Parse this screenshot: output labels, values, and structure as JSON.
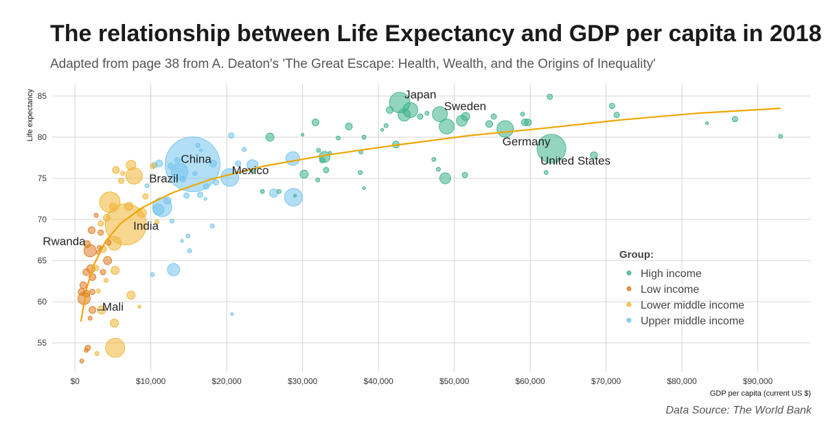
{
  "chart_data": {
    "type": "scatter",
    "title": "The relationship between Life Expectancy and GDP per capita in 2018",
    "subtitle": "Adapted from page 38 from A. Deaton's 'The Great Escape: Health, Wealth, and the Origins of Inequality'",
    "caption": "Data Source: The World Bank",
    "xlabel": "GDP per capita (current US $)",
    "ylabel": "Life expectancy",
    "xlim": [
      -3000,
      97000
    ],
    "ylim": [
      51.5,
      86.5
    ],
    "x_ticks": [
      0,
      10000,
      20000,
      30000,
      40000,
      50000,
      60000,
      70000,
      80000,
      90000
    ],
    "x_tick_labels": [
      "$0",
      "$10,000",
      "$20,000",
      "$30,000",
      "$40,000",
      "$50,000",
      "$60,000",
      "$70,000",
      "$80,000",
      "$90,000"
    ],
    "y_ticks": [
      55,
      60,
      65,
      70,
      75,
      80,
      85
    ],
    "y_tick_labels": [
      "55",
      "60",
      "65",
      "70",
      "75",
      "80",
      "85"
    ],
    "grid": true,
    "legend": {
      "title": "Group:",
      "placement": "right",
      "entries": [
        {
          "key": "high",
          "label": "High income",
          "color": "#3db28a"
        },
        {
          "key": "low",
          "label": "Low income",
          "color": "#e07b22"
        },
        {
          "key": "lower_middle",
          "label": "Lower middle income",
          "color": "#f0b434"
        },
        {
          "key": "upper_middle",
          "label": "Upper middle income",
          "color": "#72c3ef"
        }
      ]
    },
    "trend_color": "#f0a500",
    "trend_line": [
      [
        800,
        57.6
      ],
      [
        1500,
        61.5
      ],
      [
        2500,
        64.5
      ],
      [
        4000,
        67.3
      ],
      [
        6000,
        69.5
      ],
      [
        9000,
        71.5
      ],
      [
        13000,
        73.3
      ],
      [
        18000,
        74.9
      ],
      [
        25000,
        76.5
      ],
      [
        33000,
        77.8
      ],
      [
        42000,
        79.0
      ],
      [
        52000,
        80.2
      ],
      [
        62000,
        81.1
      ],
      [
        72000,
        82.1
      ],
      [
        82000,
        82.9
      ],
      [
        93000,
        83.5
      ]
    ],
    "points": [
      {
        "x": 42800,
        "y": 84.2,
        "s": 15,
        "g": "high"
      },
      {
        "x": 44200,
        "y": 83.3,
        "s": 11,
        "g": "high"
      },
      {
        "x": 41500,
        "y": 83.3,
        "s": 5,
        "g": "high"
      },
      {
        "x": 43400,
        "y": 82.7,
        "s": 9,
        "g": "high"
      },
      {
        "x": 45500,
        "y": 82.5,
        "s": 4,
        "g": "high"
      },
      {
        "x": 46400,
        "y": 82.9,
        "s": 3,
        "g": "high"
      },
      {
        "x": 48100,
        "y": 82.8,
        "s": 11,
        "g": "high"
      },
      {
        "x": 51000,
        "y": 82.0,
        "s": 8,
        "g": "high"
      },
      {
        "x": 51500,
        "y": 82.5,
        "s": 6,
        "g": "high"
      },
      {
        "x": 49000,
        "y": 81.3,
        "s": 11,
        "g": "high"
      },
      {
        "x": 54600,
        "y": 81.6,
        "s": 5,
        "g": "high"
      },
      {
        "x": 55200,
        "y": 82.5,
        "s": 4,
        "g": "high"
      },
      {
        "x": 56700,
        "y": 81.0,
        "s": 12,
        "g": "high"
      },
      {
        "x": 59300,
        "y": 81.8,
        "s": 5,
        "g": "high"
      },
      {
        "x": 59700,
        "y": 81.8,
        "s": 5,
        "g": "high"
      },
      {
        "x": 59000,
        "y": 82.8,
        "s": 3,
        "g": "high"
      },
      {
        "x": 62600,
        "y": 84.9,
        "s": 4,
        "g": "high"
      },
      {
        "x": 70800,
        "y": 83.8,
        "s": 4,
        "g": "high"
      },
      {
        "x": 71400,
        "y": 82.7,
        "s": 4,
        "g": "high"
      },
      {
        "x": 87000,
        "y": 82.2,
        "s": 4,
        "g": "high"
      },
      {
        "x": 83300,
        "y": 81.7,
        "s": 2,
        "g": "high"
      },
      {
        "x": 93000,
        "y": 80.1,
        "s": 3,
        "g": "high"
      },
      {
        "x": 68400,
        "y": 77.8,
        "s": 5,
        "g": "high"
      },
      {
        "x": 62800,
        "y": 78.6,
        "s": 21,
        "g": "high"
      },
      {
        "x": 62100,
        "y": 75.7,
        "s": 3,
        "g": "high"
      },
      {
        "x": 48800,
        "y": 75.0,
        "s": 8,
        "g": "high"
      },
      {
        "x": 51400,
        "y": 75.4,
        "s": 4,
        "g": "high"
      },
      {
        "x": 47300,
        "y": 77.3,
        "s": 3,
        "g": "high"
      },
      {
        "x": 47900,
        "y": 76.1,
        "s": 3,
        "g": "high"
      },
      {
        "x": 42300,
        "y": 79.1,
        "s": 5,
        "g": "high"
      },
      {
        "x": 41000,
        "y": 81.4,
        "s": 3,
        "g": "high"
      },
      {
        "x": 40500,
        "y": 80.9,
        "s": 2,
        "g": "high"
      },
      {
        "x": 38100,
        "y": 80.0,
        "s": 3,
        "g": "high"
      },
      {
        "x": 36100,
        "y": 81.3,
        "s": 5,
        "g": "high"
      },
      {
        "x": 34700,
        "y": 79.9,
        "s": 3,
        "g": "high"
      },
      {
        "x": 31700,
        "y": 81.8,
        "s": 5,
        "g": "high"
      },
      {
        "x": 30000,
        "y": 80.3,
        "s": 2,
        "g": "high"
      },
      {
        "x": 25700,
        "y": 80.0,
        "s": 6,
        "g": "high"
      },
      {
        "x": 32900,
        "y": 77.6,
        "s": 8,
        "g": "high"
      },
      {
        "x": 32100,
        "y": 78.4,
        "s": 3,
        "g": "high"
      },
      {
        "x": 33600,
        "y": 78.1,
        "s": 2,
        "g": "high"
      },
      {
        "x": 37700,
        "y": 78.2,
        "s": 3,
        "g": "high"
      },
      {
        "x": 32600,
        "y": 77.2,
        "s": 4,
        "g": "high"
      },
      {
        "x": 33100,
        "y": 76.0,
        "s": 4,
        "g": "high"
      },
      {
        "x": 30200,
        "y": 75.5,
        "s": 6,
        "g": "high"
      },
      {
        "x": 32000,
        "y": 74.8,
        "s": 3,
        "g": "high"
      },
      {
        "x": 37600,
        "y": 75.7,
        "s": 3,
        "g": "high"
      },
      {
        "x": 38100,
        "y": 73.8,
        "s": 2,
        "g": "high"
      },
      {
        "x": 29000,
        "y": 72.9,
        "s": 2,
        "g": "high"
      },
      {
        "x": 26900,
        "y": 73.4,
        "s": 3,
        "g": "high"
      },
      {
        "x": 23400,
        "y": 75.8,
        "s": 2,
        "g": "high"
      },
      {
        "x": 24700,
        "y": 73.4,
        "s": 3,
        "g": "high"
      },
      {
        "x": 15500,
        "y": 76.7,
        "s": 40,
        "g": "upper_middle"
      },
      {
        "x": 13800,
        "y": 75.8,
        "s": 12,
        "g": "upper_middle"
      },
      {
        "x": 11500,
        "y": 71.5,
        "s": 14,
        "g": "upper_middle"
      },
      {
        "x": 11000,
        "y": 71.2,
        "s": 8,
        "g": "upper_middle"
      },
      {
        "x": 12200,
        "y": 72.3,
        "s": 5,
        "g": "upper_middle"
      },
      {
        "x": 20400,
        "y": 75.1,
        "s": 13,
        "g": "upper_middle"
      },
      {
        "x": 23400,
        "y": 76.6,
        "s": 8,
        "g": "upper_middle"
      },
      {
        "x": 28800,
        "y": 72.7,
        "s": 13,
        "g": "upper_middle"
      },
      {
        "x": 28700,
        "y": 77.4,
        "s": 10,
        "g": "upper_middle"
      },
      {
        "x": 26200,
        "y": 73.2,
        "s": 6,
        "g": "upper_middle"
      },
      {
        "x": 21500,
        "y": 76.8,
        "s": 4,
        "g": "upper_middle"
      },
      {
        "x": 22300,
        "y": 78.5,
        "s": 3,
        "g": "upper_middle"
      },
      {
        "x": 20600,
        "y": 80.2,
        "s": 4,
        "g": "upper_middle"
      },
      {
        "x": 18200,
        "y": 76.8,
        "s": 5,
        "g": "upper_middle"
      },
      {
        "x": 18600,
        "y": 74.5,
        "s": 4,
        "g": "upper_middle"
      },
      {
        "x": 17300,
        "y": 74.0,
        "s": 4,
        "g": "upper_middle"
      },
      {
        "x": 16500,
        "y": 73.0,
        "s": 4,
        "g": "upper_middle"
      },
      {
        "x": 14700,
        "y": 72.9,
        "s": 4,
        "g": "upper_middle"
      },
      {
        "x": 14200,
        "y": 74.9,
        "s": 4,
        "g": "upper_middle"
      },
      {
        "x": 15800,
        "y": 75.6,
        "s": 3,
        "g": "upper_middle"
      },
      {
        "x": 12600,
        "y": 76.5,
        "s": 4,
        "g": "upper_middle"
      },
      {
        "x": 13500,
        "y": 77.2,
        "s": 4,
        "g": "upper_middle"
      },
      {
        "x": 11100,
        "y": 76.8,
        "s": 5,
        "g": "upper_middle"
      },
      {
        "x": 10500,
        "y": 76.6,
        "s": 4,
        "g": "upper_middle"
      },
      {
        "x": 9500,
        "y": 74.1,
        "s": 3,
        "g": "upper_middle"
      },
      {
        "x": 13000,
        "y": 63.9,
        "s": 9,
        "g": "upper_middle"
      },
      {
        "x": 10200,
        "y": 63.3,
        "s": 3,
        "g": "upper_middle"
      },
      {
        "x": 14900,
        "y": 68.0,
        "s": 3,
        "g": "upper_middle"
      },
      {
        "x": 14100,
        "y": 67.4,
        "s": 2,
        "g": "upper_middle"
      },
      {
        "x": 15100,
        "y": 66.2,
        "s": 3,
        "g": "upper_middle"
      },
      {
        "x": 18100,
        "y": 69.2,
        "s": 3,
        "g": "upper_middle"
      },
      {
        "x": 17200,
        "y": 72.5,
        "s": 2,
        "g": "upper_middle"
      },
      {
        "x": 12800,
        "y": 69.8,
        "s": 3,
        "g": "upper_middle"
      },
      {
        "x": 20700,
        "y": 58.5,
        "s": 2,
        "g": "upper_middle"
      },
      {
        "x": 16200,
        "y": 79.0,
        "s": 3,
        "g": "upper_middle"
      },
      {
        "x": 16600,
        "y": 78.4,
        "s": 2,
        "g": "upper_middle"
      },
      {
        "x": 6700,
        "y": 69.4,
        "s": 30,
        "g": "lower_middle"
      },
      {
        "x": 4600,
        "y": 72.1,
        "s": 15,
        "g": "lower_middle"
      },
      {
        "x": 7800,
        "y": 75.3,
        "s": 12,
        "g": "lower_middle"
      },
      {
        "x": 7400,
        "y": 76.6,
        "s": 7,
        "g": "lower_middle"
      },
      {
        "x": 5400,
        "y": 76.0,
        "s": 5,
        "g": "lower_middle"
      },
      {
        "x": 6100,
        "y": 74.7,
        "s": 4,
        "g": "lower_middle"
      },
      {
        "x": 10300,
        "y": 76.5,
        "s": 4,
        "g": "lower_middle"
      },
      {
        "x": 9300,
        "y": 72.8,
        "s": 4,
        "g": "lower_middle"
      },
      {
        "x": 8800,
        "y": 70.8,
        "s": 7,
        "g": "lower_middle"
      },
      {
        "x": 7100,
        "y": 71.6,
        "s": 6,
        "g": "lower_middle"
      },
      {
        "x": 5000,
        "y": 71.6,
        "s": 5,
        "g": "lower_middle"
      },
      {
        "x": 4200,
        "y": 70.2,
        "s": 5,
        "g": "lower_middle"
      },
      {
        "x": 3400,
        "y": 69.5,
        "s": 4,
        "g": "lower_middle"
      },
      {
        "x": 5200,
        "y": 67.1,
        "s": 10,
        "g": "lower_middle"
      },
      {
        "x": 3700,
        "y": 66.4,
        "s": 5,
        "g": "lower_middle"
      },
      {
        "x": 2800,
        "y": 64.1,
        "s": 4,
        "g": "lower_middle"
      },
      {
        "x": 5300,
        "y": 63.8,
        "s": 6,
        "g": "lower_middle"
      },
      {
        "x": 4100,
        "y": 62.6,
        "s": 3,
        "g": "lower_middle"
      },
      {
        "x": 7400,
        "y": 60.8,
        "s": 6,
        "g": "lower_middle"
      },
      {
        "x": 8500,
        "y": 59.4,
        "s": 2,
        "g": "lower_middle"
      },
      {
        "x": 3500,
        "y": 59.0,
        "s": 6,
        "g": "lower_middle"
      },
      {
        "x": 5200,
        "y": 57.4,
        "s": 6,
        "g": "lower_middle"
      },
      {
        "x": 5300,
        "y": 54.4,
        "s": 14,
        "g": "lower_middle"
      },
      {
        "x": 2900,
        "y": 53.7,
        "s": 3,
        "g": "lower_middle"
      },
      {
        "x": 6300,
        "y": 75.6,
        "s": 3,
        "g": "lower_middle"
      },
      {
        "x": 10800,
        "y": 69.7,
        "s": 3,
        "g": "lower_middle"
      },
      {
        "x": 3100,
        "y": 61.3,
        "s": 3,
        "g": "lower_middle"
      },
      {
        "x": 2000,
        "y": 66.2,
        "s": 9,
        "g": "low"
      },
      {
        "x": 1600,
        "y": 67.0,
        "s": 5,
        "g": "low"
      },
      {
        "x": 2200,
        "y": 68.7,
        "s": 5,
        "g": "low"
      },
      {
        "x": 3400,
        "y": 68.4,
        "s": 4,
        "g": "low"
      },
      {
        "x": 3200,
        "y": 66.6,
        "s": 3,
        "g": "low"
      },
      {
        "x": 4300,
        "y": 65.0,
        "s": 6,
        "g": "low"
      },
      {
        "x": 2100,
        "y": 64.0,
        "s": 6,
        "g": "low"
      },
      {
        "x": 1500,
        "y": 63.6,
        "s": 5,
        "g": "low"
      },
      {
        "x": 2300,
        "y": 63.0,
        "s": 5,
        "g": "low"
      },
      {
        "x": 1100,
        "y": 62.0,
        "s": 5,
        "g": "low"
      },
      {
        "x": 900,
        "y": 61.2,
        "s": 5,
        "g": "low"
      },
      {
        "x": 1200,
        "y": 60.4,
        "s": 9,
        "g": "low"
      },
      {
        "x": 1500,
        "y": 61.0,
        "s": 5,
        "g": "low"
      },
      {
        "x": 2300,
        "y": 61.2,
        "s": 4,
        "g": "low"
      },
      {
        "x": 2300,
        "y": 59.0,
        "s": 5,
        "g": "low"
      },
      {
        "x": 2000,
        "y": 58.0,
        "s": 3,
        "g": "low"
      },
      {
        "x": 3700,
        "y": 63.6,
        "s": 4,
        "g": "low"
      },
      {
        "x": 3100,
        "y": 66.0,
        "s": 3,
        "g": "low"
      },
      {
        "x": 1700,
        "y": 54.4,
        "s": 4,
        "g": "low"
      },
      {
        "x": 1500,
        "y": 54.1,
        "s": 3,
        "g": "low"
      },
      {
        "x": 900,
        "y": 52.8,
        "s": 3,
        "g": "low"
      },
      {
        "x": 4400,
        "y": 67.2,
        "s": 4,
        "g": "low"
      },
      {
        "x": 2800,
        "y": 70.5,
        "s": 3,
        "g": "low"
      }
    ],
    "annotations": [
      {
        "text": "Japan",
        "x": 42800,
        "y": 84.2,
        "dx": 7,
        "dy": -6
      },
      {
        "text": "Sweden",
        "x": 48100,
        "y": 82.8,
        "dx": 6,
        "dy": -6
      },
      {
        "text": "Germany",
        "x": 56700,
        "y": 81.0,
        "dx": -4,
        "dy": 24
      },
      {
        "text": "United States",
        "x": 62800,
        "y": 78.6,
        "dx": -16,
        "dy": 23
      },
      {
        "text": "China",
        "x": 15500,
        "y": 76.7,
        "dx": -17,
        "dy": -2
      },
      {
        "text": "Mexico",
        "x": 20400,
        "y": 75.1,
        "dx": 3,
        "dy": -5
      },
      {
        "text": "Brazil",
        "x": 11500,
        "y": 71.5,
        "dx": -19,
        "dy": -36
      },
      {
        "text": "India",
        "x": 6700,
        "y": 69.4,
        "dx": 11,
        "dy": 8
      },
      {
        "text": "Rwanda",
        "x": 2000,
        "y": 66.2,
        "dx": -69,
        "dy": -8
      },
      {
        "text": "Mali",
        "x": 3500,
        "y": 59.0,
        "dx": 1,
        "dy": 1
      }
    ]
  }
}
